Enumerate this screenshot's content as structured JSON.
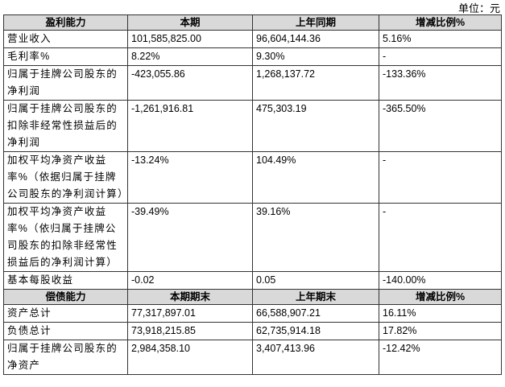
{
  "header": {
    "unit": "单位：元"
  },
  "profitability": {
    "columns": [
      "盈利能力",
      "本期",
      "上年同期",
      "增减比例%"
    ],
    "rows": [
      [
        "营业收入",
        "101,585,825.00",
        "96,604,144.36",
        "5.16%"
      ],
      [
        "毛利率%",
        "8.22%",
        "9.30%",
        "-"
      ],
      [
        "归属于挂牌公司股东的净利润",
        "-423,055.86",
        "1,268,137.72",
        "-133.36%"
      ],
      [
        "归属于挂牌公司股东的扣除非经常性损益后的净利润",
        "-1,261,916.81",
        "475,303.19",
        "-365.50%"
      ],
      [
        "加权平均净资产收益率%（依据归属于挂牌公司股东的净利润计算）",
        "-13.24%",
        "104.49%",
        "-"
      ],
      [
        "加权平均净资产收益率%（依归属于挂牌公司股东的扣除非经常性损益后的净利润计算）",
        "-39.49%",
        "39.16%",
        "-"
      ],
      [
        "基本每股收益",
        "-0.02",
        "0.05",
        "-140.00%"
      ]
    ]
  },
  "solvency": {
    "columns": [
      "偿债能力",
      "本期期末",
      "上年期末",
      "增减比例%"
    ],
    "rows": [
      [
        "资产总计",
        "77,317,897.01",
        "66,588,907.21",
        "16.11%"
      ],
      [
        "负债总计",
        "73,918,215.85",
        "62,735,914.18",
        "17.82%"
      ],
      [
        "归属于挂牌公司股东的净资产",
        "2,984,358.10",
        "3,407,413.96",
        "-12.42%"
      ]
    ]
  }
}
